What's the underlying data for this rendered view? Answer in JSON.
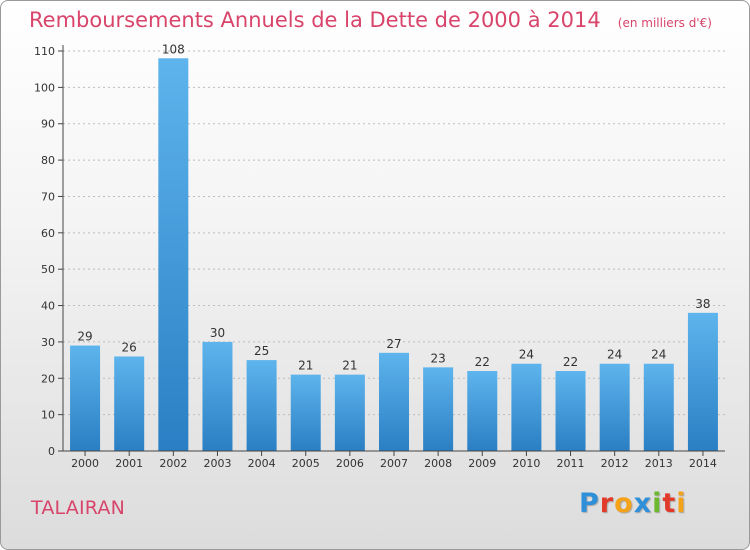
{
  "chart_data": {
    "type": "bar",
    "title": "Remboursements Annuels de la Dette de 2000 à 2014",
    "unit_note": "(en milliers d'€)",
    "categories": [
      "2000",
      "2001",
      "2002",
      "2003",
      "2004",
      "2005",
      "2006",
      "2007",
      "2008",
      "2009",
      "2010",
      "2011",
      "2012",
      "2013",
      "2014"
    ],
    "values": [
      29,
      26,
      108,
      30,
      25,
      21,
      21,
      27,
      23,
      22,
      24,
      22,
      24,
      24,
      38
    ],
    "ylim": [
      0,
      110
    ],
    "yticks": [
      0,
      10,
      20,
      30,
      40,
      50,
      60,
      70,
      80,
      90,
      100,
      110
    ],
    "grid": "horizontal-dotted",
    "bar_color": "#3d98dc",
    "xlabel": "",
    "ylabel": ""
  },
  "footer": {
    "commune": "TALAIRAN",
    "logo_text": "Proxiti"
  },
  "colors": {
    "title": "#d8446a",
    "bar_top": "#5eb4ec",
    "bar_bottom": "#2a7fc4"
  }
}
